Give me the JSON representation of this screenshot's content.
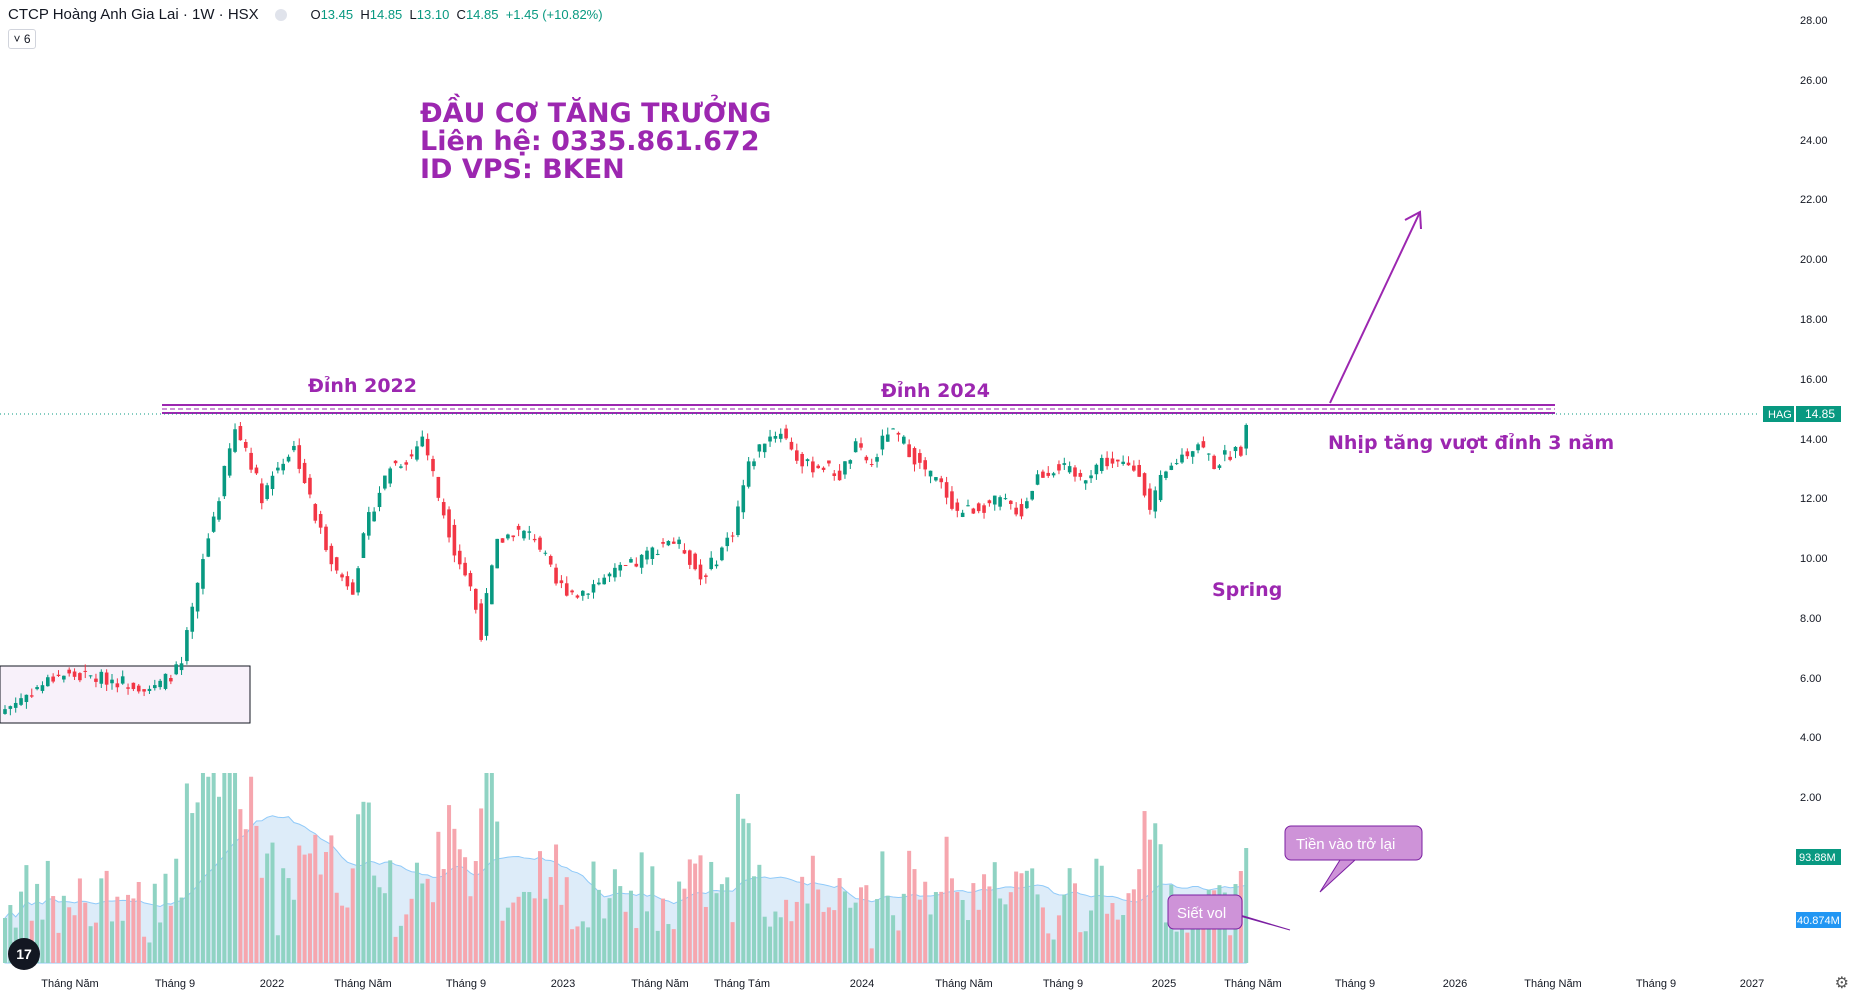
{
  "header": {
    "title": "CTCP Hoàng Anh Gia Lai · 1W · HSX",
    "open_label": "O",
    "open": "13.45",
    "high_label": "H",
    "high": "14.85",
    "low_label": "L",
    "low": "13.10",
    "close_label": "C",
    "close": "14.85",
    "change": "+1.45 (+10.82%)",
    "indicator_count": "6"
  },
  "promo": {
    "line1": "ĐẦU CƠ TĂNG TRƯỞNG",
    "line2": "Liên hệ: 0335.861.672",
    "line3": "ID VPS: BKEN"
  },
  "annotations": {
    "top_2022": "Đỉnh 2022",
    "top_2024": "Đỉnh 2024",
    "breakout": "Nhịp tăng vượt đỉnh 3 năm",
    "spring": "Spring",
    "vol_squeeze": "Siết vol",
    "money_back": "Tiền vào trở lại"
  },
  "price_tag": {
    "symbol": "HAG",
    "value": "14.85"
  },
  "volume_tags": {
    "current": "93.88M",
    "average": "40.874M"
  },
  "logo_text": "17",
  "colors": {
    "up": "#089981",
    "down": "#f23645",
    "up_vol": "#8fd3c3",
    "down_vol": "#f6a6ae",
    "ma_fill": "#cfe4f7",
    "purple": "#9c27b0",
    "axis_text": "#131722"
  },
  "chart_data": {
    "type": "candlestick",
    "interval": "1W",
    "yscale": "log",
    "ylim": [
      4.2,
      28.5
    ],
    "y_ticks": [
      "28.00",
      "26.00",
      "24.00",
      "22.00",
      "20.00",
      "18.00",
      "16.00",
      "14.00",
      "12.00",
      "10.00",
      "8.00",
      "6.00",
      "4.00",
      "2.00"
    ],
    "x_labels": [
      "Tháng Năm",
      "Tháng 9",
      "2022",
      "Tháng Năm",
      "Tháng 9",
      "2023",
      "Tháng Năm",
      "Tháng Tám",
      "2024",
      "Tháng Năm",
      "Tháng 9",
      "2025",
      "Tháng Năm",
      "Tháng 9",
      "2026",
      "Tháng Năm",
      "Tháng 9",
      "2027"
    ],
    "resistance_level": 15.0,
    "last_close": 14.85,
    "period_start": "2021-04",
    "period_end": "2025-06",
    "anchors": [
      [
        0,
        4.5
      ],
      [
        10,
        5.2
      ],
      [
        20,
        5.1
      ],
      [
        28,
        4.9
      ],
      [
        33,
        5.4
      ],
      [
        36,
        7.5
      ],
      [
        40,
        11
      ],
      [
        43,
        14.5
      ],
      [
        45,
        13.5
      ],
      [
        48,
        11
      ],
      [
        51,
        12.5
      ],
      [
        54,
        13.5
      ],
      [
        58,
        10
      ],
      [
        62,
        8
      ],
      [
        65,
        7.5
      ],
      [
        68,
        10
      ],
      [
        72,
        12.5
      ],
      [
        76,
        13
      ],
      [
        78,
        14.2
      ],
      [
        81,
        11
      ],
      [
        84,
        8.8
      ],
      [
        87,
        7.5
      ],
      [
        89,
        6.2
      ],
      [
        92,
        9
      ],
      [
        95,
        9.5
      ],
      [
        99,
        9.3
      ],
      [
        103,
        7.6
      ],
      [
        107,
        7.3
      ],
      [
        112,
        7.8
      ],
      [
        118,
        8.3
      ],
      [
        124,
        9.2
      ],
      [
        127,
        8.8
      ],
      [
        130,
        7.8
      ],
      [
        133,
        8.5
      ],
      [
        136,
        9.5
      ],
      [
        139,
        12.5
      ],
      [
        142,
        14
      ],
      [
        145,
        14.5
      ],
      [
        149,
        12.5
      ],
      [
        153,
        12.5
      ],
      [
        156,
        12
      ],
      [
        159,
        13.5
      ],
      [
        162,
        12.5
      ],
      [
        165,
        14.5
      ],
      [
        168,
        13.8
      ],
      [
        171,
        12.5
      ],
      [
        175,
        11.5
      ],
      [
        178,
        10.3
      ],
      [
        182,
        10.5
      ],
      [
        186,
        10.8
      ],
      [
        190,
        10.3
      ],
      [
        193,
        12
      ],
      [
        197,
        12.5
      ],
      [
        201,
        11.8
      ],
      [
        205,
        12.8
      ],
      [
        209,
        12.5
      ],
      [
        212,
        12.3
      ],
      [
        214,
        10.3
      ],
      [
        216,
        11.7
      ],
      [
        219,
        12.8
      ],
      [
        223,
        13.8
      ],
      [
        226,
        12.6
      ],
      [
        229,
        13.2
      ],
      [
        231,
        13.45
      ],
      [
        232,
        14.85
      ]
    ]
  }
}
